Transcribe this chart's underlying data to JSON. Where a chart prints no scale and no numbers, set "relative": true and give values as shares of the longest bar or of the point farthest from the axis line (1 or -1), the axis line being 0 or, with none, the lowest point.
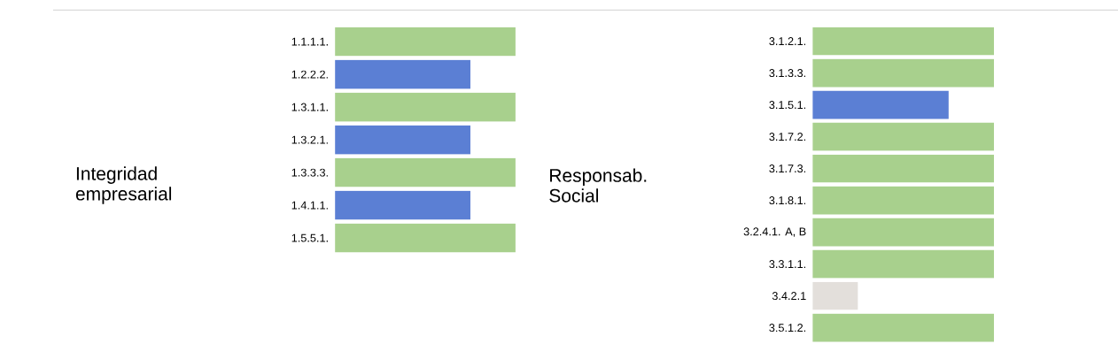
{
  "chart_data": [
    {
      "type": "bar",
      "orientation": "horizontal",
      "relative": true,
      "ylabel": "Integridad empresarial",
      "categories": [
        "1.1.1.1.",
        "1.2.2.2.",
        "1.3.1.1.",
        "1.3.2.1.",
        "1.3.3.3.",
        "1.4.1.1.",
        "1.5.5.1."
      ],
      "values": [
        1,
        0.75,
        1,
        0.75,
        1,
        0.75,
        1
      ],
      "colors": [
        "#a8d08d",
        "#5b7fd4",
        "#a8d08d",
        "#5b7fd4",
        "#a8d08d",
        "#5b7fd4",
        "#a8d08d"
      ]
    },
    {
      "type": "bar",
      "orientation": "horizontal",
      "relative": true,
      "ylabel": "Responsab. Social",
      "categories": [
        "3.1.2.1.",
        "3.1.3.3.",
        "3.1.5.1.",
        "3.1.7.2.",
        "3.1.7.3.",
        "3.1.8.1.",
        "3.2.4.1. A, B",
        "3.3.1.1.",
        "3.4.2.1",
        "3.5.1.2."
      ],
      "values": [
        1,
        1,
        0.75,
        1,
        1,
        1,
        1,
        1,
        0.25,
        1
      ],
      "colors": [
        "#a8d08d",
        "#a8d08d",
        "#5b7fd4",
        "#a8d08d",
        "#a8d08d",
        "#a8d08d",
        "#a8d08d",
        "#a8d08d",
        "#e3dfdb",
        "#a8d08d"
      ]
    }
  ]
}
